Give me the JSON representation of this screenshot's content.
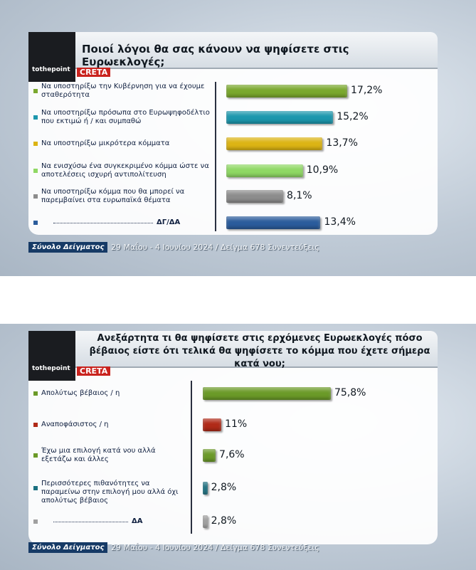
{
  "chart_data": [
    {
      "type": "bar",
      "title": "Ποιοί λόγοι θα σας κάνουν να ψηφίσετε στις Ευρωεκλογές;",
      "logos": [
        "tothepoint",
        "CRETA"
      ],
      "categories": [
        "Να υποστηρίξω την Κυβέρνηση για να έχουμε σταθερότητα",
        "Να υποστηρίξω πρόσωπα στο Ευρωψηφοδέλτιο που εκτιμώ ή / και συμπαθώ",
        "Να υποστηρίξω μικρότερα κόμματα",
        "Να ενισχύσω ένα συγκεκριμένο κόμμα ώστε να αποτελέσεις ισχυρή αντιπολίτευση",
        "Να υποστηρίξω κόμμα που θα μπορεί να παρεμβαίνει στα ευρωπαϊκά θέματα",
        "ΔΓ/ΔΑ"
      ],
      "values": [
        17.2,
        15.2,
        13.7,
        10.9,
        8.1,
        13.4
      ],
      "value_labels": [
        "17,2%",
        "15,2%",
        "13,7%",
        "10,9%",
        "8,1%",
        "13,4%"
      ],
      "colors": [
        "#7aa82e",
        "#1c97ad",
        "#dcb414",
        "#8fd864",
        "#8c8c8c",
        "#2b5c9c"
      ],
      "footer": [
        "Σύνολο Δείγματος",
        "29 Μαΐου - 4 Ιουνίου 2024 / Δείγμα 678 Συνεντεύξεις"
      ]
    },
    {
      "type": "bar",
      "title": "Ανεξάρτητα τι θα ψηφίσετε στις ερχόμενες Ευρωεκλογές πόσο βέβαιος είστε ότι τελικά θα ψηφίσετε το κόμμα που έχετε σήμερα κατά νου;",
      "logos": [
        "tothepoint",
        "CRETA"
      ],
      "categories": [
        "Απολύτως βέβαιος / η",
        "Αναποφάσιστος / η",
        "Έχω μια επιλογή κατά νου αλλά εξετάζω και άλλες",
        "Περισσότερες πιθανότητες να παραμείνω στην επιλογή μου αλλά όχι απολύτως βέβαιος",
        "ΔΑ"
      ],
      "values": [
        75.8,
        11,
        7.6,
        2.8,
        2.8
      ],
      "value_labels": [
        "75,8%",
        "11%",
        "7,6%",
        "2,8%",
        "2,8%"
      ],
      "colors": [
        "#6b9a28",
        "#b02a18",
        "#6b9a28",
        "#1a7080",
        "#a0a0a0"
      ],
      "footer": [
        "Σύνολο Δείγματος",
        "29 Μαΐου - 4 Ιουνίου 2024 / Δείγμα 678 Συνεντεύξεις"
      ]
    }
  ]
}
